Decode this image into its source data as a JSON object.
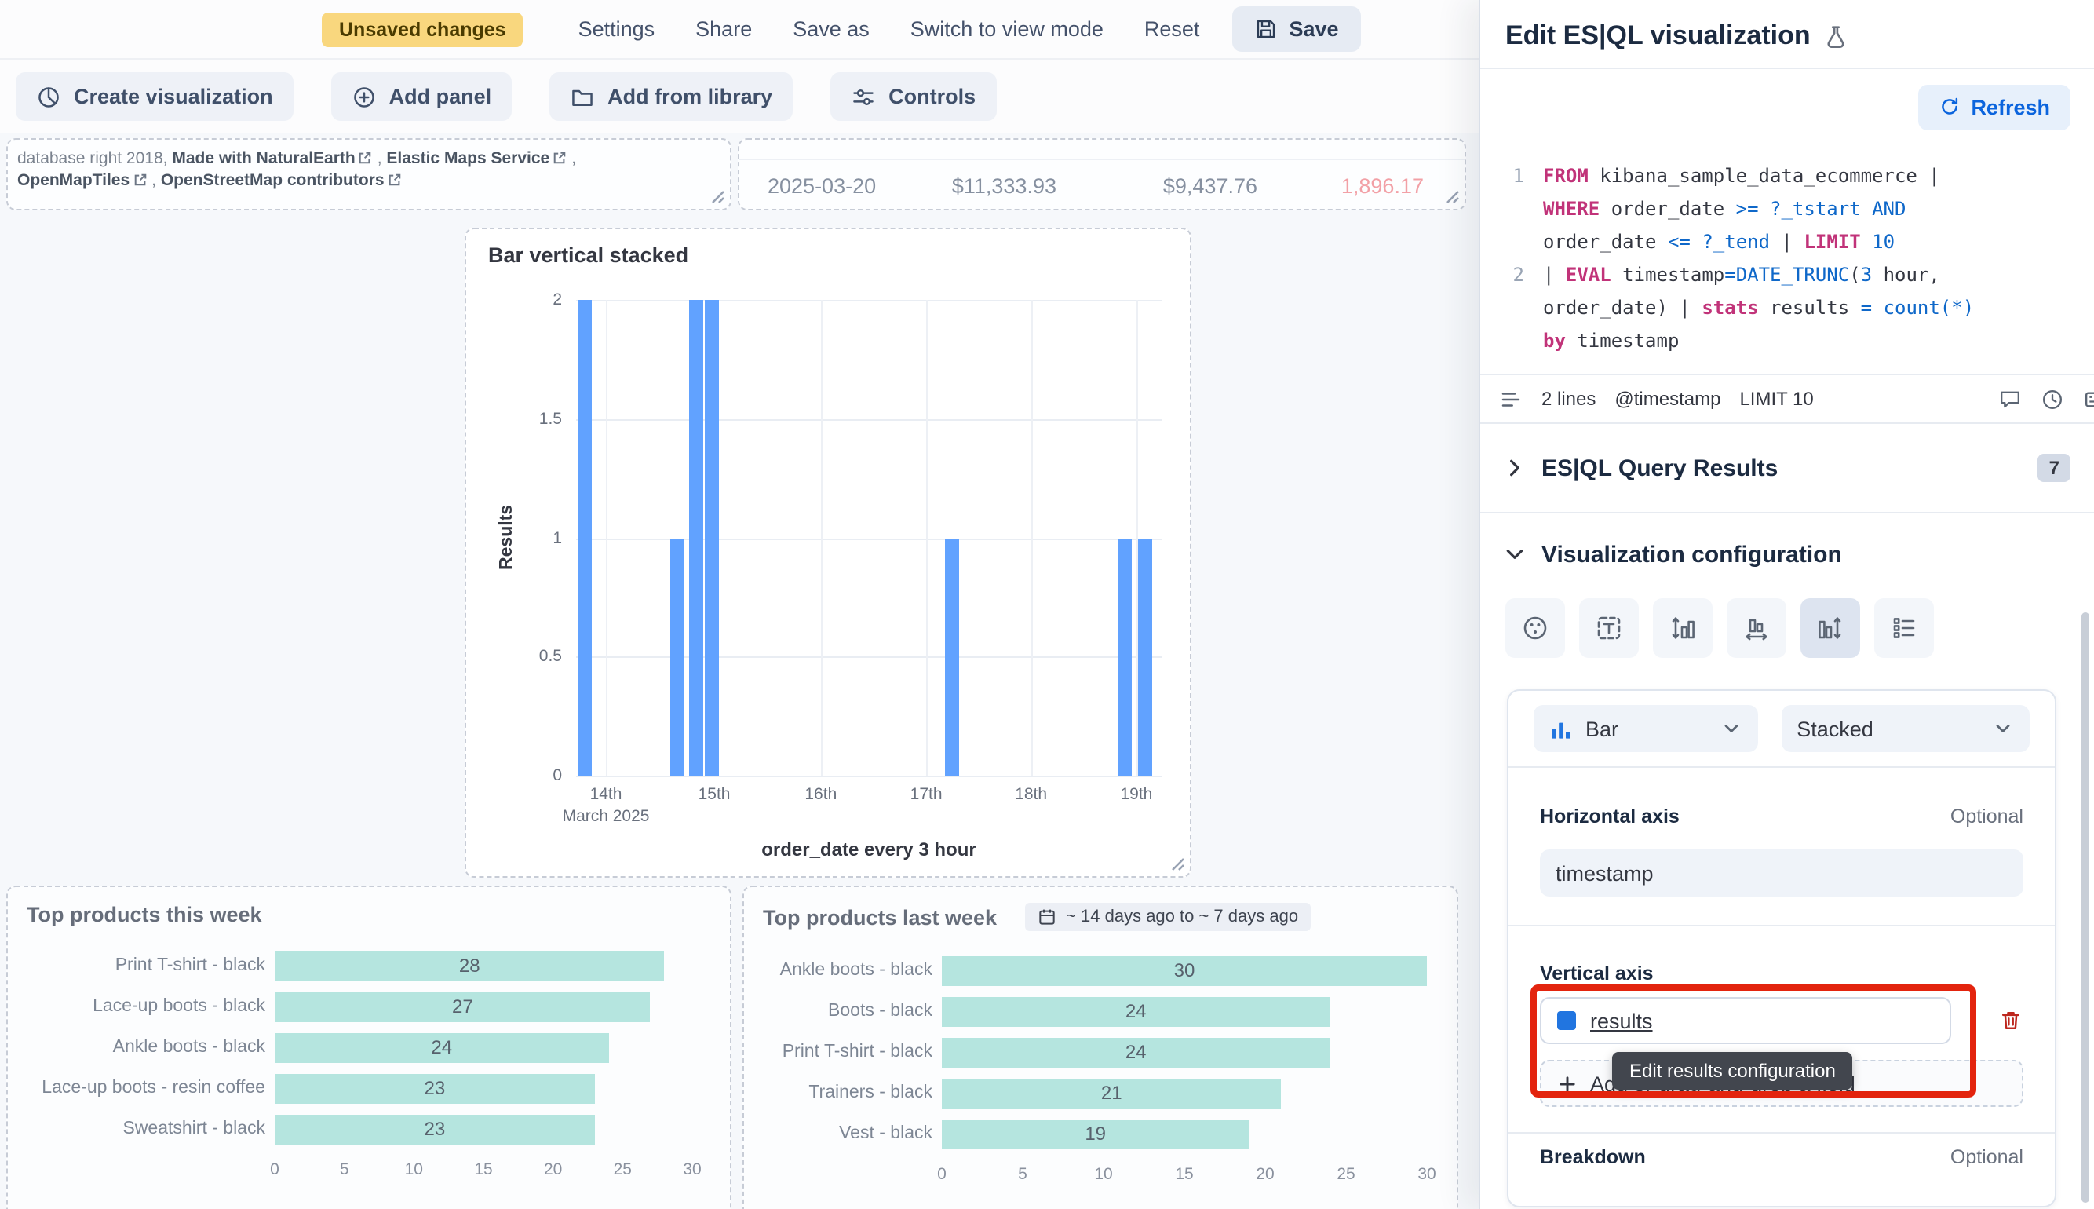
{
  "top_bar": {
    "unsaved_badge": "Unsaved changes",
    "menu": [
      {
        "name": "settings",
        "label": "Settings"
      },
      {
        "name": "share",
        "label": "Share"
      },
      {
        "name": "save-as",
        "label": "Save as"
      },
      {
        "name": "switch-to-view-mode",
        "label": "Switch to view mode"
      },
      {
        "name": "reset",
        "label": "Reset"
      }
    ],
    "save_label": "Save"
  },
  "toolbar": {
    "create_visualization": "Create visualization",
    "add_panel": "Add panel",
    "add_from_library": "Add from library",
    "controls": "Controls"
  },
  "map_attribution": {
    "line1": [
      {
        "text": "database right 2018, ",
        "link": false
      },
      {
        "text": "Made with NaturalEarth",
        "link": true
      },
      {
        "text": ", ",
        "link": false
      },
      {
        "text": "Elastic Maps Service",
        "link": true
      },
      {
        "text": ",",
        "link": false
      }
    ],
    "line2": [
      {
        "text": "OpenMapTiles",
        "link": true
      },
      {
        "text": ", ",
        "link": false
      },
      {
        "text": "OpenStreetMap contributors",
        "link": true
      }
    ]
  },
  "table_panel": {
    "row": {
      "date": "2025-03-20",
      "taxful_total": "$11,333.93",
      "taxless_total": "$9,437.76",
      "quantity": "1,896.17"
    },
    "quantity_color": "#F2A0A6"
  },
  "chart_data": [
    {
      "type": "bar",
      "title": "Bar vertical stacked",
      "xlabel": "order_date every 3 hour",
      "ylabel": "Results",
      "ylim": [
        0,
        2
      ],
      "yticks": [
        0,
        0.5,
        1,
        1.5,
        2
      ],
      "xticks": [
        {
          "label": "14th",
          "sublabel": "March 2025",
          "pos": 0.051
        },
        {
          "label": "15th",
          "pos": 0.236
        },
        {
          "label": "16th",
          "pos": 0.418
        },
        {
          "label": "17th",
          "pos": 0.598
        },
        {
          "label": "18th",
          "pos": 0.777
        },
        {
          "label": "19th",
          "pos": 0.957
        }
      ],
      "bars": [
        {
          "pos": 0.016,
          "value": 2
        },
        {
          "pos": 0.172,
          "value": 1
        },
        {
          "pos": 0.206,
          "value": 2
        },
        {
          "pos": 0.233,
          "value": 2
        },
        {
          "pos": 0.641,
          "value": 1
        },
        {
          "pos": 0.936,
          "value": 1
        },
        {
          "pos": 0.971,
          "value": 1
        }
      ],
      "bar_color": "#61A2FF",
      "grid": true
    },
    {
      "type": "bar",
      "orientation": "horizontal",
      "title": "Top products this week",
      "categories": [
        "Print T-shirt - black",
        "Lace-up boots - black",
        "Ankle boots - black",
        "Lace-up boots - resin coffee",
        "Sweatshirt - black"
      ],
      "values": [
        28,
        27,
        24,
        23,
        23
      ],
      "xticks": [
        0,
        5,
        10,
        15,
        20,
        25,
        30
      ],
      "xlim": [
        0,
        30
      ],
      "bar_color": "#B5E5DF"
    },
    {
      "type": "bar",
      "orientation": "horizontal",
      "title": "Top products last week",
      "time_badge": "~ 14 days ago to ~ 7 days ago",
      "categories": [
        "Ankle boots - black",
        "Boots - black",
        "Print T-shirt - black",
        "Trainers - black",
        "Vest - black"
      ],
      "values": [
        30,
        24,
        24,
        21,
        19
      ],
      "xticks": [
        0,
        5,
        10,
        15,
        20,
        25,
        30
      ],
      "xlim": [
        0,
        30
      ],
      "bar_color": "#B5E5DF"
    }
  ],
  "flyout": {
    "title": "Edit ES|QL visualization",
    "refresh_label": "Refresh",
    "code_lines": [
      {
        "num": "1",
        "tokens": [
          [
            "k",
            "FROM"
          ],
          [
            "n",
            " kibana_sample_data_ecommerce | "
          ],
          [
            "br",
            ""
          ],
          [
            "k",
            "WHERE"
          ],
          [
            "n",
            " order_date "
          ],
          [
            "b",
            ">="
          ],
          [
            "n",
            " "
          ],
          [
            "b",
            "?_tstart"
          ],
          [
            "n",
            " "
          ],
          [
            "b",
            "AND"
          ],
          [
            "br",
            ""
          ],
          [
            "n",
            "order_date "
          ],
          [
            "b",
            "<="
          ],
          [
            "n",
            " "
          ],
          [
            "b",
            "?_tend"
          ],
          [
            "n",
            " | "
          ],
          [
            "k",
            "LIMIT"
          ],
          [
            "n",
            " "
          ],
          [
            "b",
            "10"
          ]
        ]
      },
      {
        "num": "2",
        "tokens": [
          [
            "n",
            "| "
          ],
          [
            "k",
            "EVAL"
          ],
          [
            "n",
            " timestamp"
          ],
          [
            "b",
            "="
          ],
          [
            "b",
            "DATE_TRUNC"
          ],
          [
            "n",
            "("
          ],
          [
            "b",
            "3"
          ],
          [
            "n",
            " hour,"
          ],
          [
            "br",
            ""
          ],
          [
            "n",
            "order_date) | "
          ],
          [
            "k",
            "stats"
          ],
          [
            "n",
            " results "
          ],
          [
            "b",
            "="
          ],
          [
            "n",
            " "
          ],
          [
            "b",
            "count(*)"
          ],
          [
            "br",
            ""
          ],
          [
            "k",
            "by"
          ],
          [
            "n",
            " timestamp"
          ]
        ]
      }
    ],
    "editor_footer": {
      "lines": "2 lines",
      "default_time_field": "@timestamp",
      "limit": "LIMIT 10"
    },
    "results_section": {
      "title": "ES|QL Query Results",
      "badge": "7"
    },
    "viz_section_title": "Visualization configuration",
    "viz_toolbar": [
      {
        "name": "style-icon",
        "selected": false
      },
      {
        "name": "titles-text-icon",
        "selected": false
      },
      {
        "name": "left-axis-icon",
        "selected": false
      },
      {
        "name": "bottom-axis-icon",
        "selected": false
      },
      {
        "name": "right-axis-icon",
        "selected": true
      },
      {
        "name": "legend-icon",
        "selected": false
      }
    ],
    "config": {
      "chart_type": "Bar",
      "stacking": "Stacked",
      "horizontal_axis_label": "Horizontal axis",
      "horizontal_optional": "Optional",
      "horizontal_field": "timestamp",
      "vertical_axis_label": "Vertical axis",
      "vertical_field": "results",
      "add_field_label": "Add or drag-and-drop a field",
      "tooltip": "Edit results configuration",
      "breakdown_label": "Breakdown",
      "breakdown_optional": "Optional",
      "annotation_color": "#E3240E",
      "series_color": "#2175E0"
    }
  }
}
